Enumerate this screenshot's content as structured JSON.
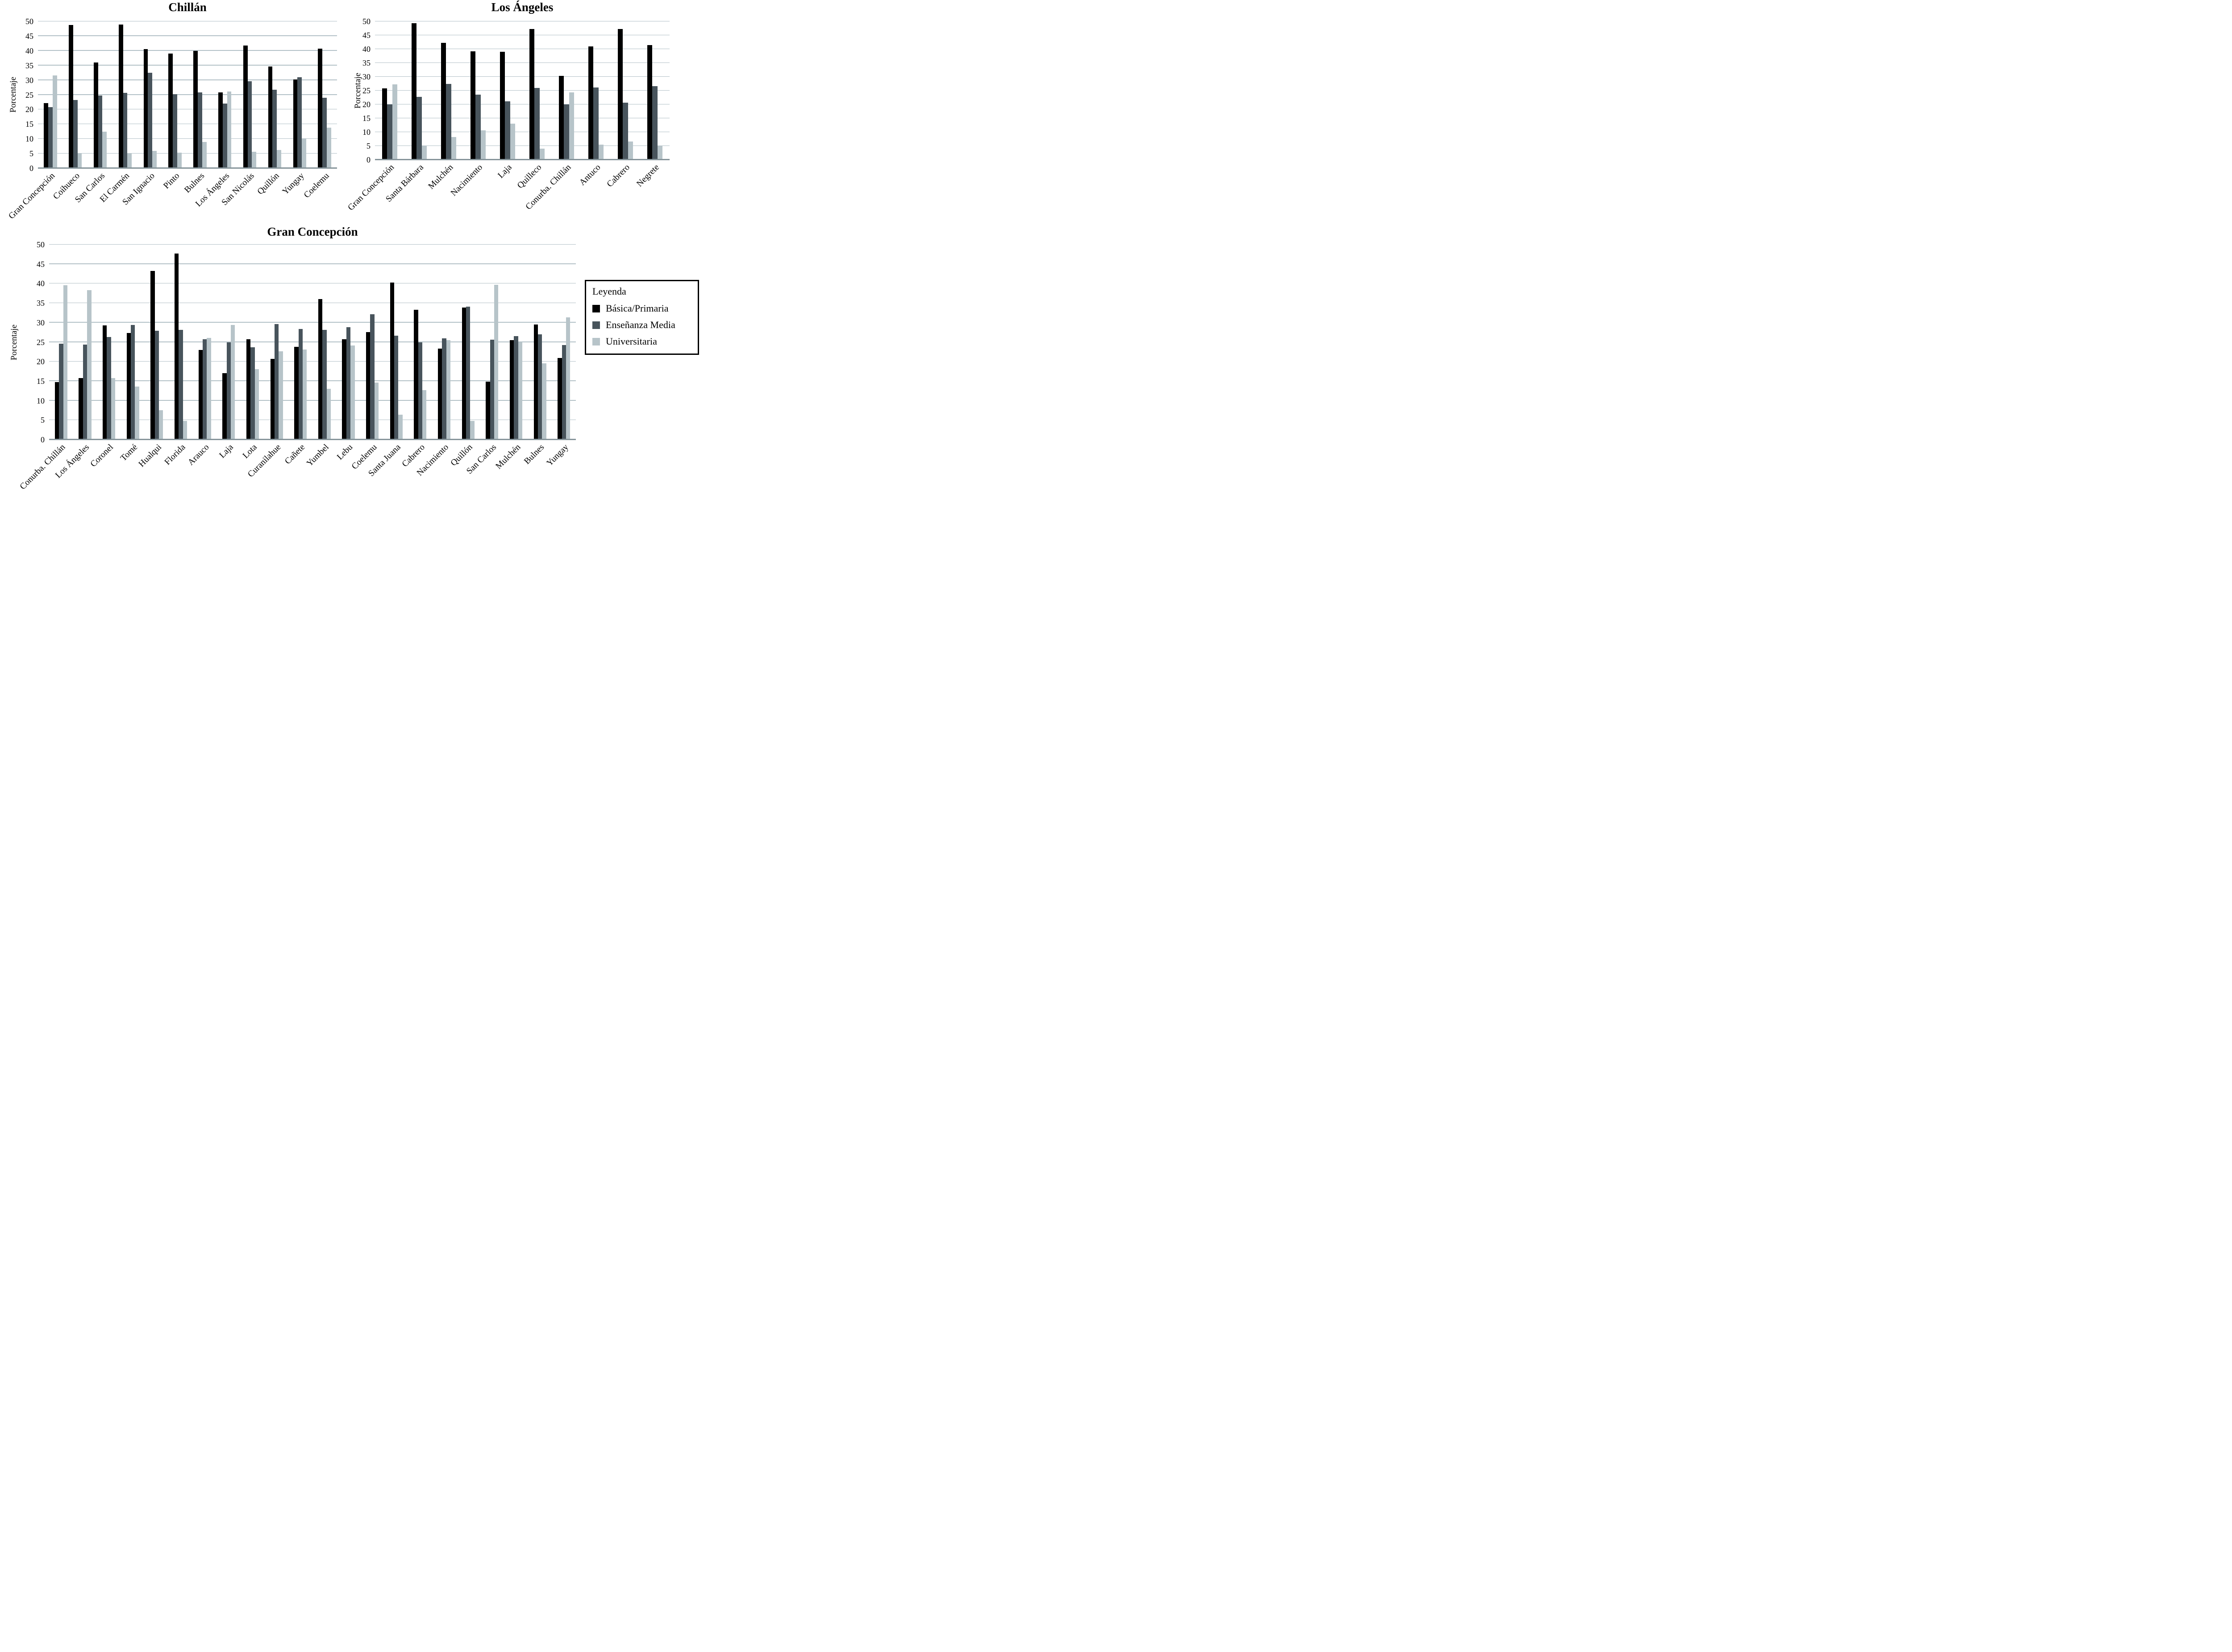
{
  "colors": {
    "basica": "#000000",
    "media": "#48545c",
    "universitaria": "#b7c4c9",
    "gridline": "#b3c1c7",
    "axis_line": "#87959b"
  },
  "legend": {
    "title": "Leyenda",
    "position": "right-of-bottom-chart",
    "items": [
      {
        "label": "Básica/Primaria",
        "color_key": "basica"
      },
      {
        "label": "Enseñanza Media",
        "color_key": "media"
      },
      {
        "label": "Universitaria",
        "color_key": "universitaria"
      }
    ]
  },
  "chart_data": [
    {
      "id": "chillan",
      "type": "bar",
      "title": "Chillán",
      "ylabel": "Porcentaje",
      "ylim": [
        0,
        50
      ],
      "ymax": 50,
      "ytick": 5,
      "grid": true,
      "categories": [
        "Gran Concepción",
        "Coihueco",
        "San Carlos",
        "El Carmén",
        "San Ignacio",
        "Pinto",
        "Bulnes",
        "Los Ángeles",
        "San Nicolás",
        "Quillón",
        "Yungay",
        "Coelemu"
      ],
      "series": [
        {
          "name": "Básica/Primaria",
          "color_key": "basica",
          "values": [
            22.2,
            48.8,
            36.0,
            48.9,
            40.6,
            39.1,
            40.0,
            25.8,
            41.8,
            34.6,
            30.2,
            40.7
          ]
        },
        {
          "name": "Enseñanza Media",
          "color_key": "media",
          "values": [
            20.8,
            23.2,
            24.8,
            25.7,
            32.6,
            25.3,
            25.8,
            22.0,
            29.6,
            26.8,
            31.0,
            24.0
          ]
        },
        {
          "name": "Universitaria",
          "color_key": "universitaria",
          "values": [
            31.6,
            5.0,
            12.5,
            5.1,
            6.0,
            5.3,
            9.0,
            26.2,
            5.7,
            6.2,
            10.1,
            13.9
          ]
        }
      ]
    },
    {
      "id": "los-angeles",
      "type": "bar",
      "title": "Los Ángeles",
      "ylabel": "Porcentaje",
      "ylim": [
        0,
        50
      ],
      "ymax": 50,
      "ytick": 5,
      "grid": true,
      "categories": [
        "Gran Concepción",
        "Santa Bárbara",
        "Mulchén",
        "Nacimiento",
        "Laja",
        "Quilleco",
        "Conurba. Chillán",
        "Antuco",
        "Cabrero",
        "Negrete"
      ],
      "series": [
        {
          "name": "Básica/Primaria",
          "color_key": "basica",
          "values": [
            25.8,
            49.3,
            42.3,
            39.2,
            39.0,
            47.3,
            30.3,
            41.0,
            47.2,
            41.5
          ]
        },
        {
          "name": "Enseñanza Media",
          "color_key": "media",
          "values": [
            20.0,
            22.7,
            27.5,
            23.5,
            21.1,
            26.0,
            20.0,
            26.2,
            20.7,
            26.6
          ]
        },
        {
          "name": "Universitaria",
          "color_key": "universitaria",
          "values": [
            27.2,
            5.0,
            8.3,
            10.6,
            13.1,
            4.0,
            24.3,
            5.5,
            6.6,
            5.2
          ]
        }
      ]
    },
    {
      "id": "gran-concepcion",
      "type": "bar",
      "title": "Gran Concepción",
      "ylabel": "Porcentaje",
      "ylim": [
        0,
        50
      ],
      "ymax": 50,
      "ytick": 5,
      "grid": true,
      "categories": [
        "Conurba. Chillán",
        "Los Ángeles",
        "Coronel",
        "Tomé",
        "Hualqui",
        "Florida",
        "Arauco",
        "Laja",
        "Lota",
        "Curanilahue",
        "Cañete",
        "Yumbel",
        "Lebu",
        "Coelemu",
        "Santa Juana",
        "Cabrero",
        "Nacimiento",
        "Quillón",
        "San Carlos",
        "Mulchén",
        "Bulnes",
        "Yungay"
      ],
      "series": [
        {
          "name": "Básica/Primaria",
          "color_key": "basica",
          "values": [
            14.8,
            15.8,
            29.3,
            27.3,
            43.2,
            47.7,
            23.0,
            17.1,
            25.8,
            20.7,
            23.8,
            36.1,
            25.7,
            27.6,
            40.3,
            33.3,
            23.3,
            33.9,
            14.9,
            25.5,
            29.5,
            20.9
          ]
        },
        {
          "name": "Enseñanza Media",
          "color_key": "media",
          "values": [
            24.6,
            24.4,
            26.3,
            29.4,
            27.9,
            28.2,
            25.7,
            24.9,
            23.7,
            29.6,
            28.4,
            28.1,
            28.8,
            32.2,
            26.7,
            25.0,
            26.0,
            34.1,
            25.6,
            26.6,
            27.0,
            24.3
          ]
        },
        {
          "name": "Universitaria",
          "color_key": "universitaria",
          "values": [
            39.6,
            38.3,
            15.8,
            13.6,
            7.5,
            4.8,
            26.1,
            29.4,
            18.1,
            22.6,
            23.1,
            13.0,
            24.1,
            14.6,
            6.4,
            12.7,
            25.5,
            4.8,
            39.7,
            25.0,
            19.6,
            31.4
          ]
        }
      ]
    }
  ]
}
